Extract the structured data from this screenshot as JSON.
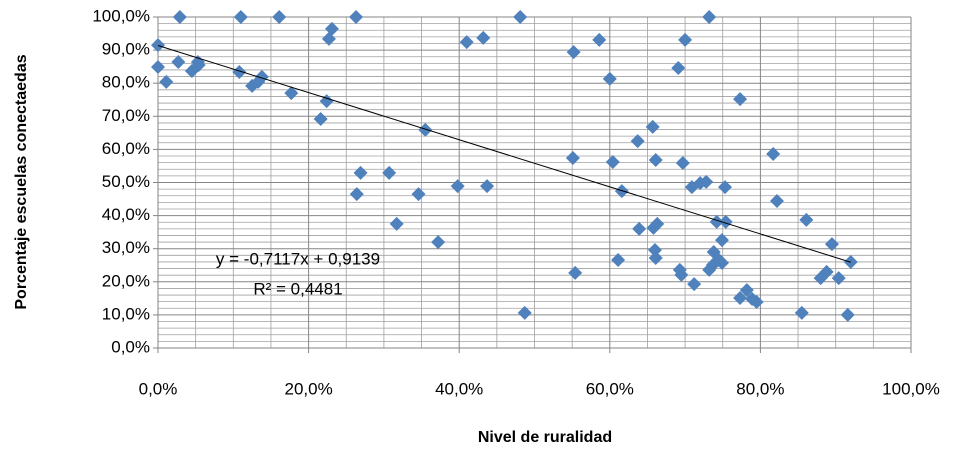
{
  "chart_data": {
    "type": "scatter",
    "x_label": "Nivel de ruralidad",
    "y_label": "Porcentaje escuelas  conectaedas",
    "xlim": [
      0,
      100
    ],
    "ylim": [
      0,
      100
    ],
    "xticks": [
      {
        "value": 0,
        "label": "0,0%"
      },
      {
        "value": 20,
        "label": "20,0%"
      },
      {
        "value": 40,
        "label": "40,0%"
      },
      {
        "value": 60,
        "label": "60,0%"
      },
      {
        "value": 80,
        "label": "80,0%"
      },
      {
        "value": 100,
        "label": "100,0%"
      }
    ],
    "yticks": [
      {
        "value": 0,
        "label": "0,0%"
      },
      {
        "value": 10,
        "label": "10,0%"
      },
      {
        "value": 20,
        "label": "20,0%"
      },
      {
        "value": 30,
        "label": "30,0%"
      },
      {
        "value": 40,
        "label": "40,0%"
      },
      {
        "value": 50,
        "label": "50,0%"
      },
      {
        "value": 60,
        "label": "60,0%"
      },
      {
        "value": 70,
        "label": "70,0%"
      },
      {
        "value": 80,
        "label": "80,0%"
      },
      {
        "value": 90,
        "label": "90,0%"
      },
      {
        "value": 100,
        "label": "100,0%"
      }
    ],
    "grid": true,
    "minor_grid": true,
    "color": "#4f81bd",
    "x": [
      0,
      0,
      1.1,
      2.9,
      2.7,
      4.5,
      5.3,
      5.4,
      10.8,
      11.0,
      12.5,
      13.3,
      13.8,
      16.1,
      17.7,
      21.6,
      22.4,
      22.7,
      23.1,
      26.3,
      26.4,
      26.9,
      30.7,
      31.7,
      34.6,
      35.5,
      37.2,
      39.8,
      43.7,
      41.0,
      43.2,
      48.1,
      48.7,
      55.1,
      55.2,
      55.4,
      58.6,
      60.0,
      60.4,
      61.1,
      61.6,
      63.7,
      63.9,
      65.7,
      65.8,
      66.0,
      66.1,
      66.1,
      66.3,
      69.1,
      69.3,
      69.5,
      69.7,
      70.0,
      70.9,
      71.2,
      72.0,
      72.8,
      73.2,
      73.2,
      73.7,
      73.8,
      74.2,
      74.5,
      74.9,
      74.9,
      75.3,
      75.4,
      77.3,
      77.3,
      78.2,
      78.9,
      79.5,
      81.7,
      82.2,
      86.1,
      88.0,
      88.8,
      85.5,
      89.5,
      90.4,
      91.6,
      92.0
    ],
    "values": [
      91.5,
      84.9,
      80.4,
      100,
      86.4,
      83.7,
      86.4,
      85.5,
      83.4,
      100,
      79.2,
      80.4,
      81.9,
      100,
      77.0,
      69.2,
      74.6,
      93.4,
      96.4,
      100,
      46.5,
      52.9,
      52.9,
      37.5,
      46.5,
      65.9,
      32.0,
      48.9,
      48.9,
      92.4,
      93.7,
      100,
      10.6,
      57.4,
      89.4,
      22.7,
      93.1,
      81.3,
      56.2,
      26.6,
      47.4,
      62.5,
      36.0,
      66.8,
      36.3,
      29.6,
      56.8,
      27.2,
      37.5,
      84.6,
      23.6,
      22.1,
      55.9,
      93.1,
      48.6,
      19.3,
      49.8,
      50.2,
      100,
      23.6,
      25.1,
      29.0,
      38.1,
      26.6,
      32.6,
      25.7,
      48.6,
      38.1,
      75.2,
      15.1,
      17.5,
      14.8,
      13.9,
      58.6,
      44.4,
      38.7,
      21.1,
      23.0,
      10.6,
      31.4,
      21.1,
      10.0,
      26.0
    ],
    "trendline": {
      "slope": -0.7117,
      "intercept": 91.39,
      "equation": "y = -0,7117x + 0,9139",
      "r2": "R² = 0,4481"
    }
  }
}
